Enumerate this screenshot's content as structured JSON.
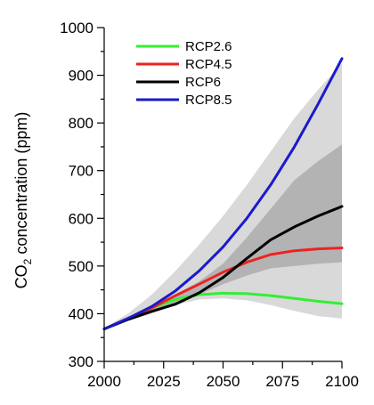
{
  "chart_data": {
    "type": "line",
    "ylabel_main": "CO",
    "ylabel_sub": "2",
    "ylabel_rest": " concentration (ppm)",
    "xlim": [
      2000,
      2100
    ],
    "ylim": [
      300,
      1000
    ],
    "x_ticks": [
      2000,
      2025,
      2050,
      2075,
      2100
    ],
    "y_ticks": [
      300,
      400,
      500,
      600,
      700,
      800,
      900,
      1000
    ],
    "legend_position": "top-left",
    "grid": false,
    "series": [
      {
        "name": "RCP2.6",
        "color": "#33ee33",
        "x": [
          2000,
          2010,
          2020,
          2030,
          2040,
          2050,
          2060,
          2070,
          2080,
          2090,
          2100
        ],
        "values": [
          368,
          390,
          412,
          430,
          440,
          443,
          442,
          438,
          432,
          426,
          421
        ]
      },
      {
        "name": "RCP4.5",
        "color": "#ee2222",
        "x": [
          2000,
          2010,
          2020,
          2030,
          2040,
          2050,
          2060,
          2070,
          2080,
          2090,
          2100
        ],
        "values": [
          368,
          390,
          412,
          438,
          462,
          487,
          508,
          524,
          532,
          536,
          538
        ]
      },
      {
        "name": "RCP6",
        "color": "#000000",
        "x": [
          2000,
          2010,
          2020,
          2030,
          2040,
          2050,
          2060,
          2070,
          2080,
          2090,
          2100
        ],
        "values": [
          368,
          388,
          405,
          420,
          444,
          476,
          516,
          555,
          582,
          605,
          625
        ]
      },
      {
        "name": "RCP8.5",
        "color": "#1a1acc",
        "x": [
          2000,
          2010,
          2020,
          2030,
          2040,
          2050,
          2060,
          2070,
          2080,
          2090,
          2100
        ],
        "values": [
          368,
          390,
          415,
          448,
          490,
          540,
          600,
          670,
          750,
          840,
          935
        ]
      }
    ],
    "bands": [
      {
        "color": "#d9d9d9",
        "x": [
          2000,
          2010,
          2020,
          2030,
          2040,
          2050,
          2060,
          2070,
          2080,
          2090,
          2100
        ],
        "low": [
          366,
          385,
          400,
          418,
          430,
          432,
          428,
          418,
          406,
          395,
          390
        ],
        "high": [
          370,
          400,
          440,
          490,
          545,
          605,
          670,
          740,
          810,
          870,
          925
        ]
      },
      {
        "color": "#b3b3b3",
        "x": [
          2000,
          2010,
          2020,
          2030,
          2040,
          2050,
          2060,
          2070,
          2080,
          2090,
          2100
        ],
        "low": [
          367,
          388,
          405,
          420,
          440,
          462,
          480,
          495,
          500,
          505,
          508
        ],
        "high": [
          369,
          393,
          418,
          440,
          468,
          505,
          560,
          620,
          680,
          720,
          755
        ]
      }
    ]
  }
}
